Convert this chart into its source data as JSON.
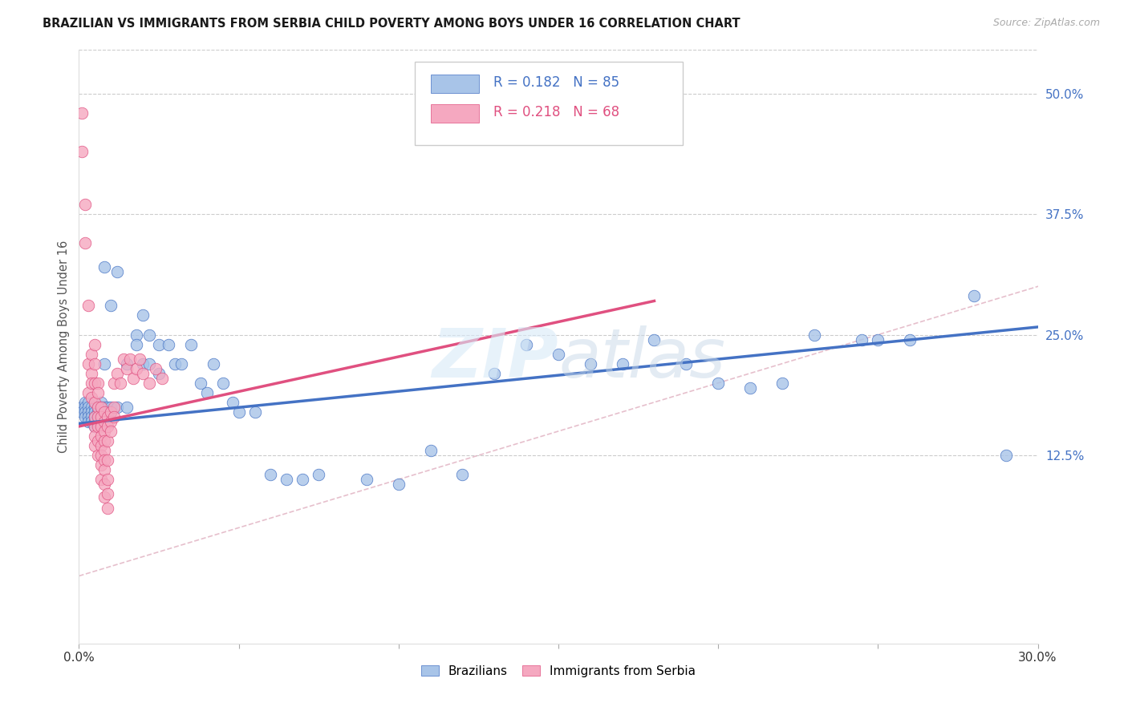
{
  "title": "BRAZILIAN VS IMMIGRANTS FROM SERBIA CHILD POVERTY AMONG BOYS UNDER 16 CORRELATION CHART",
  "source": "Source: ZipAtlas.com",
  "ylabel": "Child Poverty Among Boys Under 16",
  "ytick_labels": [
    "12.5%",
    "25.0%",
    "37.5%",
    "50.0%"
  ],
  "ytick_values": [
    0.125,
    0.25,
    0.375,
    0.5
  ],
  "xmin": 0.0,
  "xmax": 0.3,
  "ymin": -0.07,
  "ymax": 0.545,
  "watermark": "ZIPatlas",
  "legend_entries": [
    {
      "label": "Brazilians",
      "color": "#a8c4e8",
      "R": 0.182,
      "N": 85
    },
    {
      "label": "Immigrants from Serbia",
      "color": "#f5a8c0",
      "R": 0.218,
      "N": 68
    }
  ],
  "brazil_scatter": [
    [
      0.001,
      0.175
    ],
    [
      0.001,
      0.17
    ],
    [
      0.002,
      0.18
    ],
    [
      0.002,
      0.175
    ],
    [
      0.002,
      0.17
    ],
    [
      0.002,
      0.165
    ],
    [
      0.003,
      0.18
    ],
    [
      0.003,
      0.175
    ],
    [
      0.003,
      0.17
    ],
    [
      0.003,
      0.165
    ],
    [
      0.003,
      0.16
    ],
    [
      0.004,
      0.175
    ],
    [
      0.004,
      0.17
    ],
    [
      0.004,
      0.165
    ],
    [
      0.004,
      0.16
    ],
    [
      0.005,
      0.175
    ],
    [
      0.005,
      0.17
    ],
    [
      0.005,
      0.165
    ],
    [
      0.005,
      0.16
    ],
    [
      0.005,
      0.155
    ],
    [
      0.006,
      0.175
    ],
    [
      0.006,
      0.17
    ],
    [
      0.006,
      0.165
    ],
    [
      0.006,
      0.16
    ],
    [
      0.007,
      0.18
    ],
    [
      0.007,
      0.175
    ],
    [
      0.007,
      0.17
    ],
    [
      0.007,
      0.165
    ],
    [
      0.008,
      0.32
    ],
    [
      0.008,
      0.22
    ],
    [
      0.008,
      0.175
    ],
    [
      0.008,
      0.17
    ],
    [
      0.009,
      0.175
    ],
    [
      0.009,
      0.17
    ],
    [
      0.009,
      0.165
    ],
    [
      0.01,
      0.28
    ],
    [
      0.01,
      0.175
    ],
    [
      0.01,
      0.17
    ],
    [
      0.012,
      0.315
    ],
    [
      0.012,
      0.175
    ],
    [
      0.015,
      0.22
    ],
    [
      0.015,
      0.175
    ],
    [
      0.018,
      0.25
    ],
    [
      0.018,
      0.24
    ],
    [
      0.02,
      0.27
    ],
    [
      0.02,
      0.22
    ],
    [
      0.022,
      0.25
    ],
    [
      0.022,
      0.22
    ],
    [
      0.025,
      0.24
    ],
    [
      0.025,
      0.21
    ],
    [
      0.028,
      0.24
    ],
    [
      0.03,
      0.22
    ],
    [
      0.032,
      0.22
    ],
    [
      0.035,
      0.24
    ],
    [
      0.038,
      0.2
    ],
    [
      0.04,
      0.19
    ],
    [
      0.042,
      0.22
    ],
    [
      0.045,
      0.2
    ],
    [
      0.048,
      0.18
    ],
    [
      0.05,
      0.17
    ],
    [
      0.055,
      0.17
    ],
    [
      0.06,
      0.105
    ],
    [
      0.065,
      0.1
    ],
    [
      0.07,
      0.1
    ],
    [
      0.075,
      0.105
    ],
    [
      0.09,
      0.1
    ],
    [
      0.1,
      0.095
    ],
    [
      0.11,
      0.13
    ],
    [
      0.12,
      0.105
    ],
    [
      0.13,
      0.21
    ],
    [
      0.14,
      0.24
    ],
    [
      0.15,
      0.23
    ],
    [
      0.16,
      0.22
    ],
    [
      0.17,
      0.22
    ],
    [
      0.18,
      0.245
    ],
    [
      0.19,
      0.22
    ],
    [
      0.2,
      0.2
    ],
    [
      0.21,
      0.195
    ],
    [
      0.22,
      0.2
    ],
    [
      0.23,
      0.25
    ],
    [
      0.245,
      0.245
    ],
    [
      0.25,
      0.245
    ],
    [
      0.26,
      0.245
    ],
    [
      0.28,
      0.29
    ],
    [
      0.29,
      0.125
    ]
  ],
  "serbia_scatter": [
    [
      0.001,
      0.48
    ],
    [
      0.001,
      0.44
    ],
    [
      0.002,
      0.385
    ],
    [
      0.002,
      0.345
    ],
    [
      0.003,
      0.28
    ],
    [
      0.003,
      0.22
    ],
    [
      0.003,
      0.19
    ],
    [
      0.004,
      0.23
    ],
    [
      0.004,
      0.21
    ],
    [
      0.004,
      0.2
    ],
    [
      0.004,
      0.185
    ],
    [
      0.005,
      0.24
    ],
    [
      0.005,
      0.22
    ],
    [
      0.005,
      0.2
    ],
    [
      0.005,
      0.18
    ],
    [
      0.005,
      0.165
    ],
    [
      0.005,
      0.155
    ],
    [
      0.005,
      0.145
    ],
    [
      0.005,
      0.135
    ],
    [
      0.006,
      0.2
    ],
    [
      0.006,
      0.19
    ],
    [
      0.006,
      0.175
    ],
    [
      0.006,
      0.165
    ],
    [
      0.006,
      0.155
    ],
    [
      0.006,
      0.14
    ],
    [
      0.006,
      0.125
    ],
    [
      0.007,
      0.175
    ],
    [
      0.007,
      0.165
    ],
    [
      0.007,
      0.155
    ],
    [
      0.007,
      0.145
    ],
    [
      0.007,
      0.135
    ],
    [
      0.007,
      0.125
    ],
    [
      0.007,
      0.115
    ],
    [
      0.007,
      0.1
    ],
    [
      0.008,
      0.17
    ],
    [
      0.008,
      0.16
    ],
    [
      0.008,
      0.15
    ],
    [
      0.008,
      0.14
    ],
    [
      0.008,
      0.13
    ],
    [
      0.008,
      0.12
    ],
    [
      0.008,
      0.11
    ],
    [
      0.008,
      0.095
    ],
    [
      0.008,
      0.082
    ],
    [
      0.009,
      0.165
    ],
    [
      0.009,
      0.155
    ],
    [
      0.009,
      0.14
    ],
    [
      0.009,
      0.12
    ],
    [
      0.009,
      0.1
    ],
    [
      0.009,
      0.085
    ],
    [
      0.009,
      0.07
    ],
    [
      0.01,
      0.17
    ],
    [
      0.01,
      0.16
    ],
    [
      0.01,
      0.15
    ],
    [
      0.011,
      0.175
    ],
    [
      0.011,
      0.165
    ],
    [
      0.011,
      0.2
    ],
    [
      0.012,
      0.21
    ],
    [
      0.013,
      0.2
    ],
    [
      0.014,
      0.225
    ],
    [
      0.015,
      0.215
    ],
    [
      0.016,
      0.225
    ],
    [
      0.017,
      0.205
    ],
    [
      0.018,
      0.215
    ],
    [
      0.019,
      0.225
    ],
    [
      0.02,
      0.21
    ],
    [
      0.022,
      0.2
    ],
    [
      0.024,
      0.215
    ],
    [
      0.026,
      0.205
    ]
  ],
  "brazil_line_x": [
    0.0,
    0.3
  ],
  "brazil_line_y": [
    0.158,
    0.258
  ],
  "serbia_line_x": [
    0.0,
    0.18
  ],
  "serbia_line_y": [
    0.155,
    0.285
  ],
  "brazil_line_color": "#4472c4",
  "serbia_line_color": "#e05080",
  "brazil_dot_color": "#a8c4e8",
  "serbia_dot_color": "#f5a8c0",
  "background_color": "#ffffff",
  "grid_color": "#cccccc"
}
